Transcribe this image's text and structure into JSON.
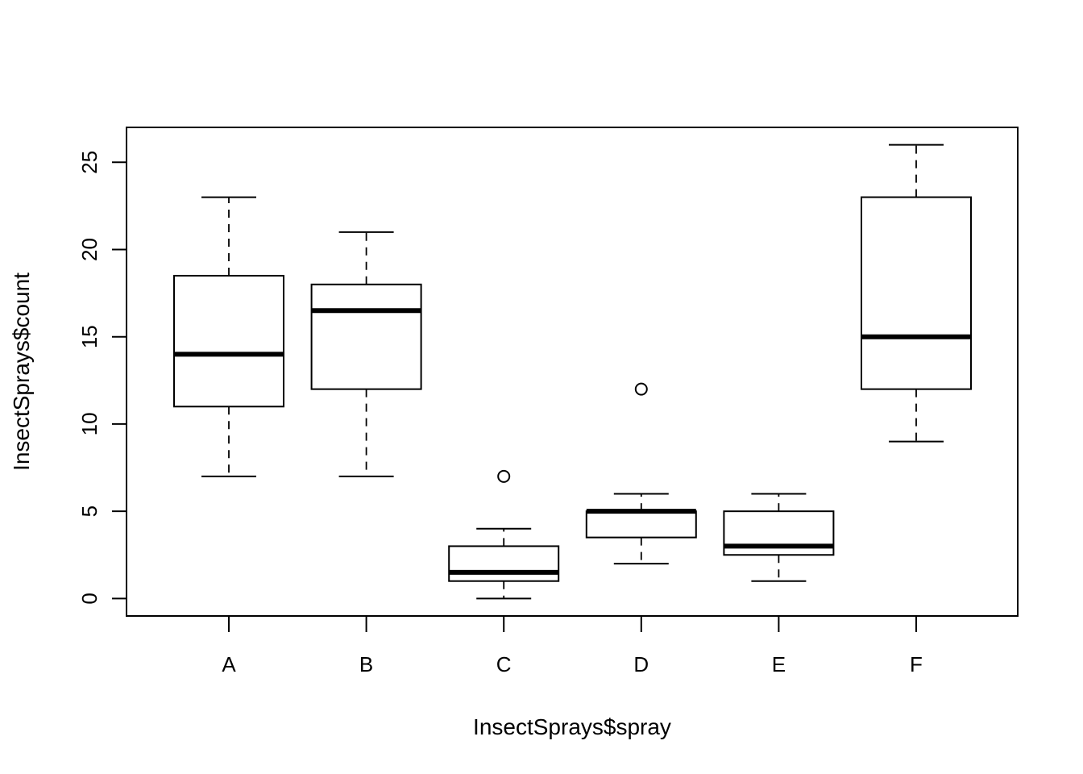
{
  "chart_data": {
    "type": "boxplot",
    "title": "",
    "xlabel": "InsectSprays$spray",
    "ylabel": "InsectSprays$count",
    "categories": [
      "A",
      "B",
      "C",
      "D",
      "E",
      "F"
    ],
    "boxes": [
      {
        "category": "A",
        "whisker_low": 7,
        "q1": 11,
        "median": 14,
        "q3": 18.5,
        "whisker_high": 23,
        "outliers": []
      },
      {
        "category": "B",
        "whisker_low": 7,
        "q1": 12,
        "median": 16.5,
        "q3": 18,
        "whisker_high": 21,
        "outliers": []
      },
      {
        "category": "C",
        "whisker_low": 0,
        "q1": 1,
        "median": 1.5,
        "q3": 3,
        "whisker_high": 4,
        "outliers": [
          7
        ]
      },
      {
        "category": "D",
        "whisker_low": 2,
        "q1": 3.5,
        "median": 5,
        "q3": 5,
        "whisker_high": 6,
        "outliers": [
          12
        ]
      },
      {
        "category": "E",
        "whisker_low": 1,
        "q1": 2.5,
        "median": 3,
        "q3": 5,
        "whisker_high": 6,
        "outliers": []
      },
      {
        "category": "F",
        "whisker_low": 9,
        "q1": 12,
        "median": 15,
        "q3": 23,
        "whisker_high": 26,
        "outliers": []
      }
    ],
    "y_ticks": [
      0,
      5,
      10,
      15,
      20,
      25
    ],
    "ylim": [
      -1,
      27
    ],
    "grid": false,
    "legend": "none"
  }
}
